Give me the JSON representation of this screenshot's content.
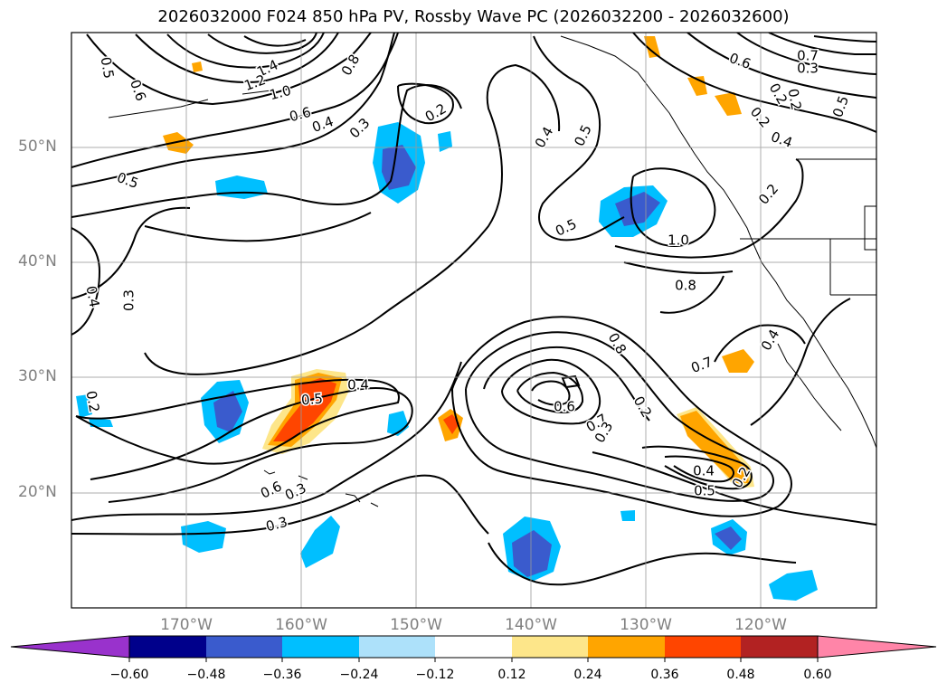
{
  "title": "2026032000 F024 850 hPa PV, Rossby Wave PC (2026032200 - 2026032600)",
  "lat_labels": [
    "50°N",
    "40°N",
    "30°N",
    "20°N"
  ],
  "lon_labels": [
    "170°W",
    "160°W",
    "150°W",
    "140°W",
    "130°W",
    "120°W"
  ],
  "colorbar": {
    "ticks": [
      "−0.60",
      "−0.48",
      "−0.36",
      "−0.24",
      "−0.12",
      "0.12",
      "0.24",
      "0.36",
      "0.48",
      "0.60"
    ],
    "colors": [
      "#9932cc",
      "#00008b",
      "#3a5bcd",
      "#00bfff",
      "#ade1fa",
      "#ffffff",
      "#fde68a",
      "#ffa500",
      "#ff4500",
      "#b22222",
      "#ff85a8"
    ]
  },
  "contour_labels": [
    "0.5",
    "0.6",
    "1.4",
    "1.2",
    "1.0",
    "0.8",
    "0.6",
    "0.4",
    "0.3",
    "0.2",
    "0.5",
    "0.4",
    "0.3",
    "0.2",
    "0.5",
    "0.6",
    "0.4",
    "0.3",
    "0.3",
    "0.4",
    "0.5",
    "0.6",
    "0.7",
    "0.3",
    "0.2",
    "0.2",
    "0.5",
    "0.2",
    "0.4",
    "0.2",
    "0.5",
    "1.0",
    "0.8",
    "0.7",
    "0.4",
    "0.8",
    "0.6",
    "0.7",
    "0.3",
    "0.2",
    "0.4",
    "0.5",
    "0.2"
  ]
}
